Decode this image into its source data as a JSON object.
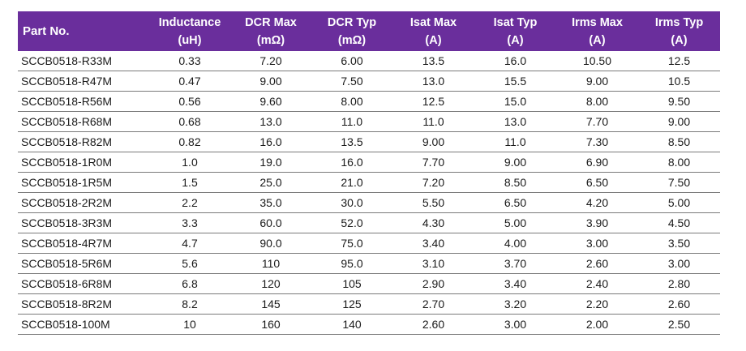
{
  "table": {
    "headers": [
      {
        "line1": "Part No.",
        "line2": ""
      },
      {
        "line1": "Inductance",
        "line2": "(uH)"
      },
      {
        "line1": "DCR Max",
        "line2": "(mΩ)"
      },
      {
        "line1": "DCR Typ",
        "line2": "(mΩ)"
      },
      {
        "line1": "Isat Max",
        "line2": "(A)"
      },
      {
        "line1": "Isat Typ",
        "line2": "(A)"
      },
      {
        "line1": "Irms Max",
        "line2": "(A)"
      },
      {
        "line1": "Irms Typ",
        "line2": "(A)"
      }
    ],
    "rows": [
      [
        "SCCB0518-R33M",
        "0.33",
        "7.20",
        "6.00",
        "13.5",
        "16.0",
        "10.50",
        "12.5"
      ],
      [
        "SCCB0518-R47M",
        "0.47",
        "9.00",
        "7.50",
        "13.0",
        "15.5",
        "9.00",
        "10.5"
      ],
      [
        "SCCB0518-R56M",
        "0.56",
        "9.60",
        "8.00",
        "12.5",
        "15.0",
        "8.00",
        "9.50"
      ],
      [
        "SCCB0518-R68M",
        "0.68",
        "13.0",
        "11.0",
        "11.0",
        "13.0",
        "7.70",
        "9.00"
      ],
      [
        "SCCB0518-R82M",
        "0.82",
        "16.0",
        "13.5",
        "9.00",
        "11.0",
        "7.30",
        "8.50"
      ],
      [
        "SCCB0518-1R0M",
        "1.0",
        "19.0",
        "16.0",
        "7.70",
        "9.00",
        "6.90",
        "8.00"
      ],
      [
        "SCCB0518-1R5M",
        "1.5",
        "25.0",
        "21.0",
        "7.20",
        "8.50",
        "6.50",
        "7.50"
      ],
      [
        "SCCB0518-2R2M",
        "2.2",
        "35.0",
        "30.0",
        "5.50",
        "6.50",
        "4.20",
        "5.00"
      ],
      [
        "SCCB0518-3R3M",
        "3.3",
        "60.0",
        "52.0",
        "4.30",
        "5.00",
        "3.90",
        "4.50"
      ],
      [
        "SCCB0518-4R7M",
        "4.7",
        "90.0",
        "75.0",
        "3.40",
        "4.00",
        "3.00",
        "3.50"
      ],
      [
        "SCCB0518-5R6M",
        "5.6",
        "110",
        "95.0",
        "3.10",
        "3.70",
        "2.60",
        "3.00"
      ],
      [
        "SCCB0518-6R8M",
        "6.8",
        "120",
        "105",
        "2.90",
        "3.40",
        "2.40",
        "2.80"
      ],
      [
        "SCCB0518-8R2M",
        "8.2",
        "145",
        "125",
        "2.70",
        "3.20",
        "2.20",
        "2.60"
      ],
      [
        "SCCB0518-100M",
        "10",
        "160",
        "140",
        "2.60",
        "3.00",
        "2.00",
        "2.50"
      ]
    ]
  },
  "colors": {
    "header_bg": "#6a2e9c",
    "header_text": "#ffffff",
    "row_divider": "#7a7a7a",
    "body_text": "#1a1a1a"
  }
}
